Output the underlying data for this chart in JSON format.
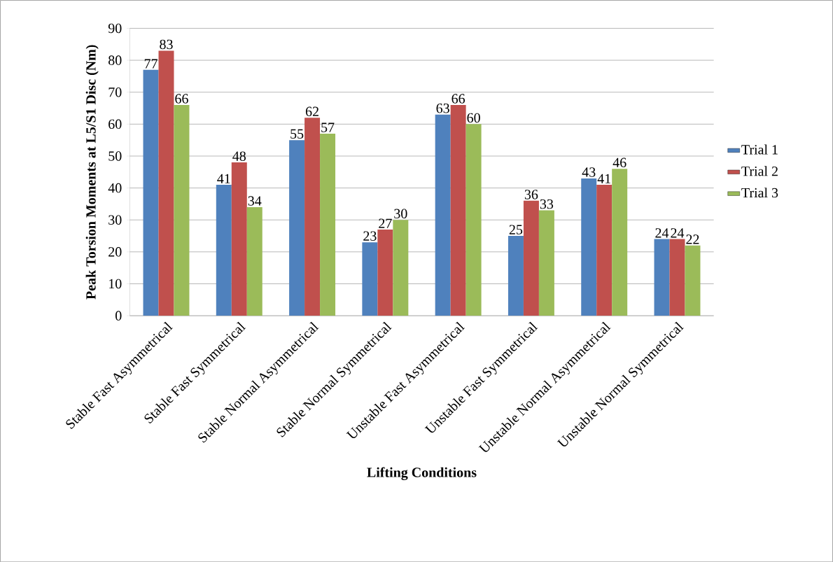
{
  "chart_data": {
    "type": "bar",
    "xlabel": "Lifting Conditions",
    "ylabel": "Peak Torsion Moments at L5/S1 Disc (Nm)",
    "categories": [
      "Stable Fast Asymmetrical",
      "Stable Fast Symmetrical",
      "Stable Normal Asymmetrical",
      "Stable Normal Symmetrical",
      "Unstable Fast Asymmetrical",
      "Unstable Fast Symmetrical",
      "Unstable Normal Asymmetrical",
      "Unstable Normal Symmetrical"
    ],
    "series": [
      {
        "name": "Trial 1",
        "color": "#4f81bd",
        "values": [
          77,
          41,
          55,
          23,
          63,
          25,
          43,
          24
        ]
      },
      {
        "name": "Trial 2",
        "color": "#c0504d",
        "values": [
          83,
          48,
          62,
          27,
          66,
          36,
          41,
          24
        ]
      },
      {
        "name": "Trial 3",
        "color": "#9bbb59",
        "values": [
          66,
          34,
          57,
          30,
          60,
          33,
          46,
          22
        ]
      }
    ],
    "ylim": [
      0,
      90
    ],
    "yticks": [
      0,
      10,
      20,
      30,
      40,
      50,
      60,
      70,
      80,
      90
    ],
    "grid": "y",
    "legend": "right",
    "data_labels": true
  }
}
